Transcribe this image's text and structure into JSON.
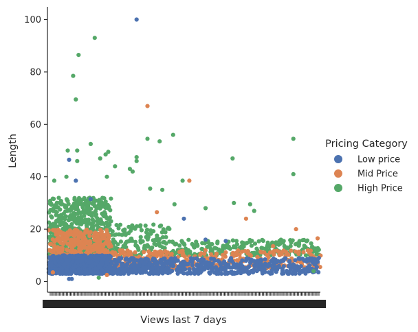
{
  "chart_data": {
    "type": "scatter",
    "subtype": "strip",
    "title": "",
    "xlabel": "Views last 7 days",
    "ylabel": "Length",
    "ylim": [
      -4,
      105
    ],
    "yticks": [
      0,
      20,
      40,
      60,
      80,
      100
    ],
    "x_ticks_note": "categorical x axis; tick labels densely overlapping and unreadable",
    "x_category_count": 200,
    "grid": false,
    "legend": {
      "title": "Pricing Category",
      "placement": "right",
      "entries": [
        "Low price",
        "Mid Price",
        "High Price"
      ]
    },
    "colors": {
      "Low price": "#4c72b0",
      "Mid Price": "#dd8452",
      "High Price": "#55a868"
    },
    "series": [
      {
        "name": "Low price",
        "bulk_range": [
          3,
          10
        ],
        "outliers": [
          {
            "x": 64,
            "y": 100
          },
          {
            "x": 14,
            "y": 46.5
          },
          {
            "x": 19,
            "y": 38.5
          },
          {
            "x": 30,
            "y": 31.5
          },
          {
            "x": 99,
            "y": 24
          },
          {
            "x": 130,
            "y": 15.5
          },
          {
            "x": 115,
            "y": 16
          },
          {
            "x": 14,
            "y": 1
          },
          {
            "x": 16,
            "y": 1
          }
        ]
      },
      {
        "name": "Mid Price",
        "bulk_range": [
          5,
          20
        ],
        "outliers": [
          {
            "x": 72,
            "y": 67
          },
          {
            "x": 103,
            "y": 38.5
          },
          {
            "x": 79,
            "y": 26.5
          },
          {
            "x": 145,
            "y": 24
          },
          {
            "x": 182,
            "y": 20
          },
          {
            "x": 198,
            "y": 16.5
          },
          {
            "x": 165,
            "y": 13.5
          },
          {
            "x": 2,
            "y": 3.5
          },
          {
            "x": 42,
            "y": 2.5
          }
        ]
      },
      {
        "name": "High Price",
        "bulk_range": [
          10,
          30
        ],
        "outliers": [
          {
            "x": 33,
            "y": 93
          },
          {
            "x": 21,
            "y": 86.5
          },
          {
            "x": 17,
            "y": 78.5
          },
          {
            "x": 19,
            "y": 69.5
          },
          {
            "x": 91,
            "y": 56
          },
          {
            "x": 180,
            "y": 54.5
          },
          {
            "x": 72,
            "y": 54.5
          },
          {
            "x": 81,
            "y": 53.5
          },
          {
            "x": 30,
            "y": 52.5
          },
          {
            "x": 13,
            "y": 50
          },
          {
            "x": 20,
            "y": 50
          },
          {
            "x": 43,
            "y": 49.5
          },
          {
            "x": 41,
            "y": 48.5
          },
          {
            "x": 37,
            "y": 47
          },
          {
            "x": 135,
            "y": 47
          },
          {
            "x": 64,
            "y": 47.5
          },
          {
            "x": 64,
            "y": 46
          },
          {
            "x": 20,
            "y": 46
          },
          {
            "x": 48,
            "y": 44
          },
          {
            "x": 59,
            "y": 43
          },
          {
            "x": 61,
            "y": 42
          },
          {
            "x": 180,
            "y": 41
          },
          {
            "x": 12,
            "y": 40
          },
          {
            "x": 3,
            "y": 38.5
          },
          {
            "x": 98,
            "y": 38.5
          },
          {
            "x": 42,
            "y": 40
          },
          {
            "x": 74,
            "y": 35.5
          },
          {
            "x": 83,
            "y": 35
          },
          {
            "x": 115,
            "y": 28
          },
          {
            "x": 136,
            "y": 30
          },
          {
            "x": 148,
            "y": 29.5
          },
          {
            "x": 151,
            "y": 27
          },
          {
            "x": 92,
            "y": 29.5
          },
          {
            "x": 36,
            "y": 1.5
          },
          {
            "x": 195,
            "y": 4
          }
        ]
      }
    ]
  }
}
